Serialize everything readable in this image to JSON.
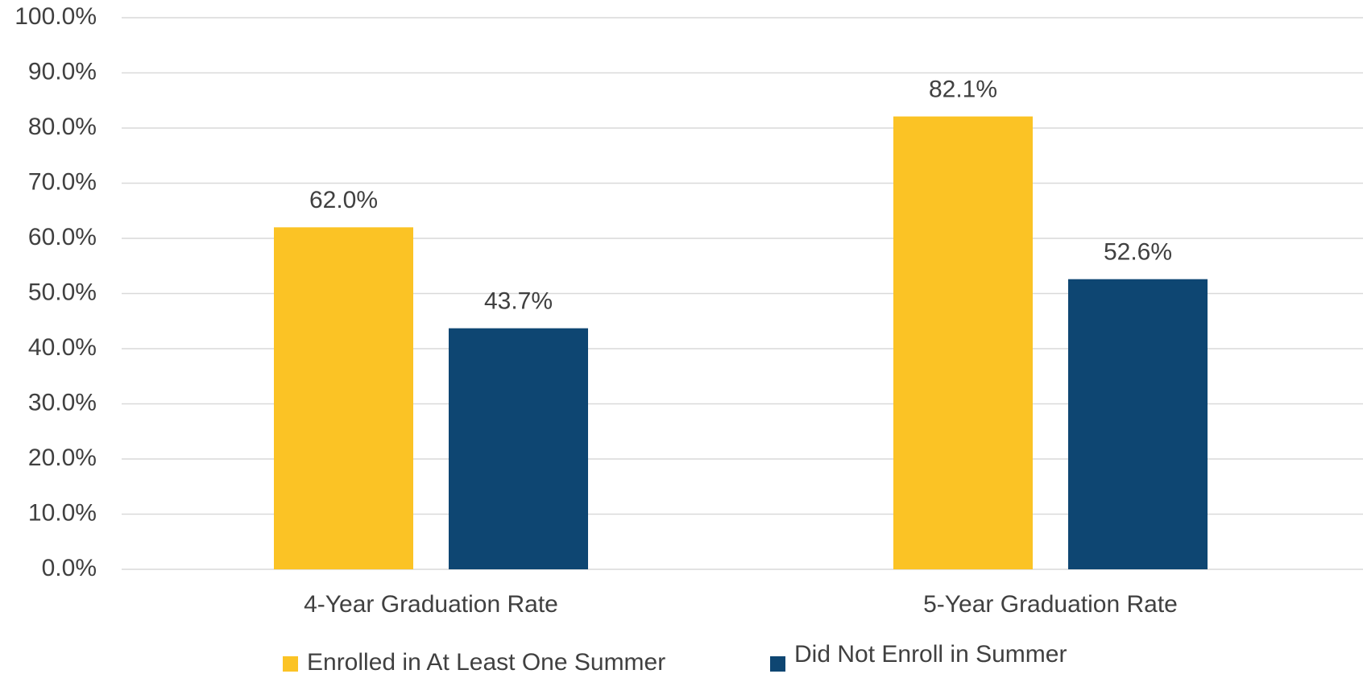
{
  "chart_data": {
    "type": "bar",
    "categories": [
      "4-Year Graduation Rate",
      "5-Year Graduation Rate"
    ],
    "series": [
      {
        "name": "Enrolled in At Least One Summer",
        "color": "#fbc325",
        "values": [
          62.0,
          82.1
        ],
        "value_labels": [
          "62.0%",
          "82.1%"
        ]
      },
      {
        "name": "Did Not Enroll in Summer",
        "color": "#0e4672",
        "values": [
          43.7,
          52.6
        ],
        "value_labels": [
          "43.7%",
          "52.6%"
        ]
      }
    ],
    "ylim": [
      0,
      100
    ],
    "yticks": [
      {
        "value": 0,
        "label": "0.0%"
      },
      {
        "value": 10,
        "label": "10.0%"
      },
      {
        "value": 20,
        "label": "20.0%"
      },
      {
        "value": 30,
        "label": "30.0%"
      },
      {
        "value": 40,
        "label": "40.0%"
      },
      {
        "value": 50,
        "label": "50.0%"
      },
      {
        "value": 60,
        "label": "60.0%"
      },
      {
        "value": 70,
        "label": "70.0%"
      },
      {
        "value": 80,
        "label": "80.0%"
      },
      {
        "value": 90,
        "label": "90.0%"
      },
      {
        "value": 100,
        "label": "100.0%"
      }
    ],
    "grid": true,
    "legend": "bottom"
  }
}
